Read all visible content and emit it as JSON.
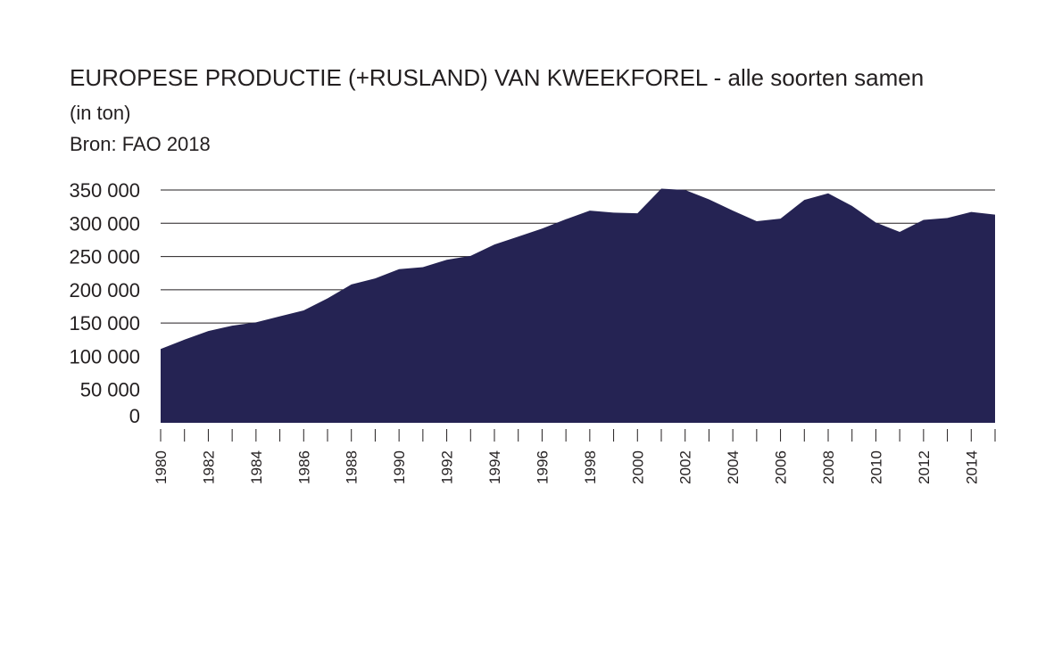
{
  "title": "EUROPESE PRODUCTIE (+RUSLAND) VAN KWEEKFOREL - alle soorten samen",
  "subtitle": "(in ton)",
  "source": "Bron: FAO 2018",
  "colors": {
    "area": "#252353",
    "grid": "#231f20",
    "text": "#231f20"
  },
  "chart_data": {
    "type": "area",
    "title": "EUROPESE PRODUCTIE (+RUSLAND) VAN KWEEKFOREL - alle soorten samen",
    "ylabel": "(in ton)",
    "xlabel": "",
    "ylim": [
      0,
      350000
    ],
    "yticks": [
      0,
      50000,
      100000,
      150000,
      200000,
      250000,
      300000,
      350000
    ],
    "ytick_labels": [
      "0",
      "50 000",
      "100 000",
      "150 000",
      "200 000",
      "250 000",
      "300 000",
      "350 000"
    ],
    "xtick_labels": [
      "1980",
      "1982",
      "1984",
      "1986",
      "1988",
      "1990",
      "1992",
      "1994",
      "1996",
      "1998",
      "2000",
      "2002",
      "2004",
      "2006",
      "2008",
      "2010",
      "2012",
      "2014"
    ],
    "grid": true,
    "x": [
      1980,
      1981,
      1982,
      1983,
      1984,
      1985,
      1986,
      1987,
      1988,
      1989,
      1990,
      1991,
      1992,
      1993,
      1994,
      1995,
      1996,
      1997,
      1998,
      1999,
      2000,
      2001,
      2002,
      2003,
      2004,
      2005,
      2006,
      2007,
      2008,
      2009,
      2010,
      2011,
      2012,
      2013,
      2014,
      2015
    ],
    "values": [
      111000,
      125000,
      138000,
      146000,
      151000,
      160000,
      169000,
      187000,
      208000,
      217000,
      231000,
      234000,
      245000,
      251000,
      268000,
      280000,
      292000,
      306000,
      319000,
      316000,
      315000,
      352000,
      350000,
      336000,
      319000,
      303000,
      307000,
      335000,
      345000,
      326000,
      301000,
      287000,
      305000,
      308000,
      317000,
      313000
    ]
  }
}
